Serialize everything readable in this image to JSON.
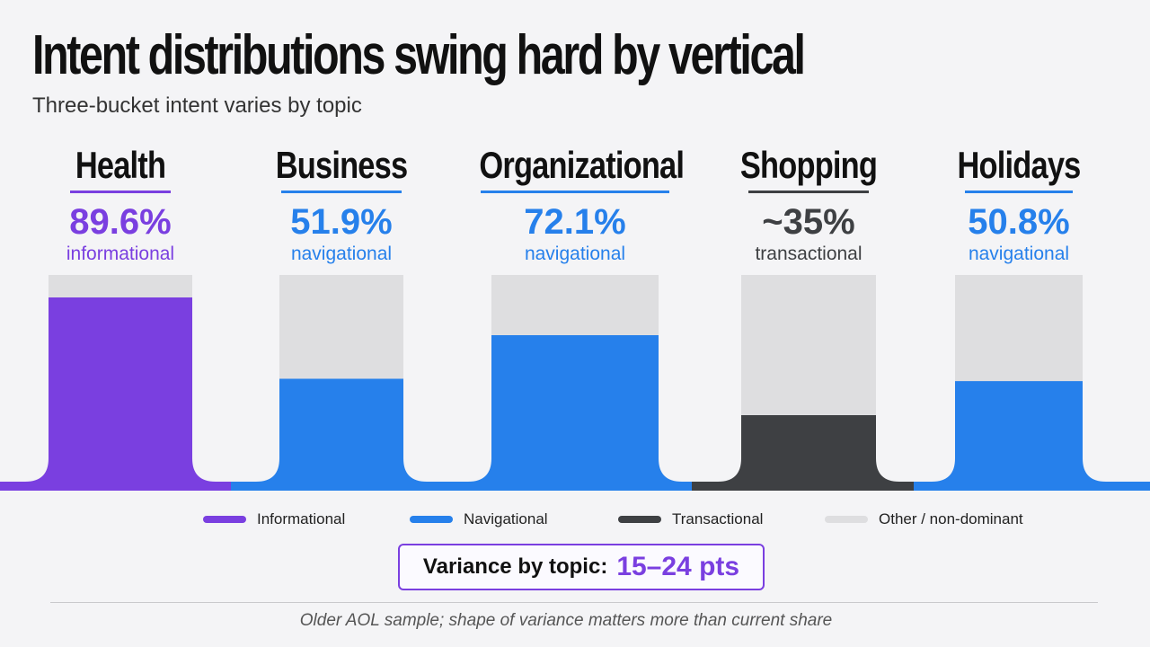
{
  "header": {
    "title": "Intent distributions swing hard by vertical",
    "subtitle": "Three-bucket intent varies by topic"
  },
  "colors": {
    "informational": "#7a3fe0",
    "navigational": "#2680eb",
    "transactional": "#3e4043",
    "other": "#dedee0"
  },
  "chart_data": {
    "type": "bar",
    "categories": [
      "Health",
      "Business",
      "Organizational",
      "Shopping",
      "Holidays"
    ],
    "values": [
      89.6,
      51.9,
      72.1,
      35,
      50.8
    ],
    "value_labels": [
      "89.6%",
      "51.9%",
      "72.1%",
      "~35%",
      "50.8%"
    ],
    "intent_labels": [
      "informational",
      "navigational",
      "navigational",
      "transactional",
      "navigational"
    ],
    "intent_keys": [
      "informational",
      "navigational",
      "navigational",
      "transactional",
      "navigational"
    ],
    "ylim": [
      0,
      100
    ],
    "legend": [
      {
        "label": "Informational",
        "key": "informational"
      },
      {
        "label": "Navigational",
        "key": "navigational"
      },
      {
        "label": "Transactional",
        "key": "transactional"
      },
      {
        "label": "Other / non-dominant",
        "key": "other"
      }
    ],
    "legend_position": "bottom"
  },
  "callout": {
    "label": "Variance by topic:",
    "value": "15–24 pts"
  },
  "footnote": "Older AOL sample; shape of variance matters more than current share"
}
